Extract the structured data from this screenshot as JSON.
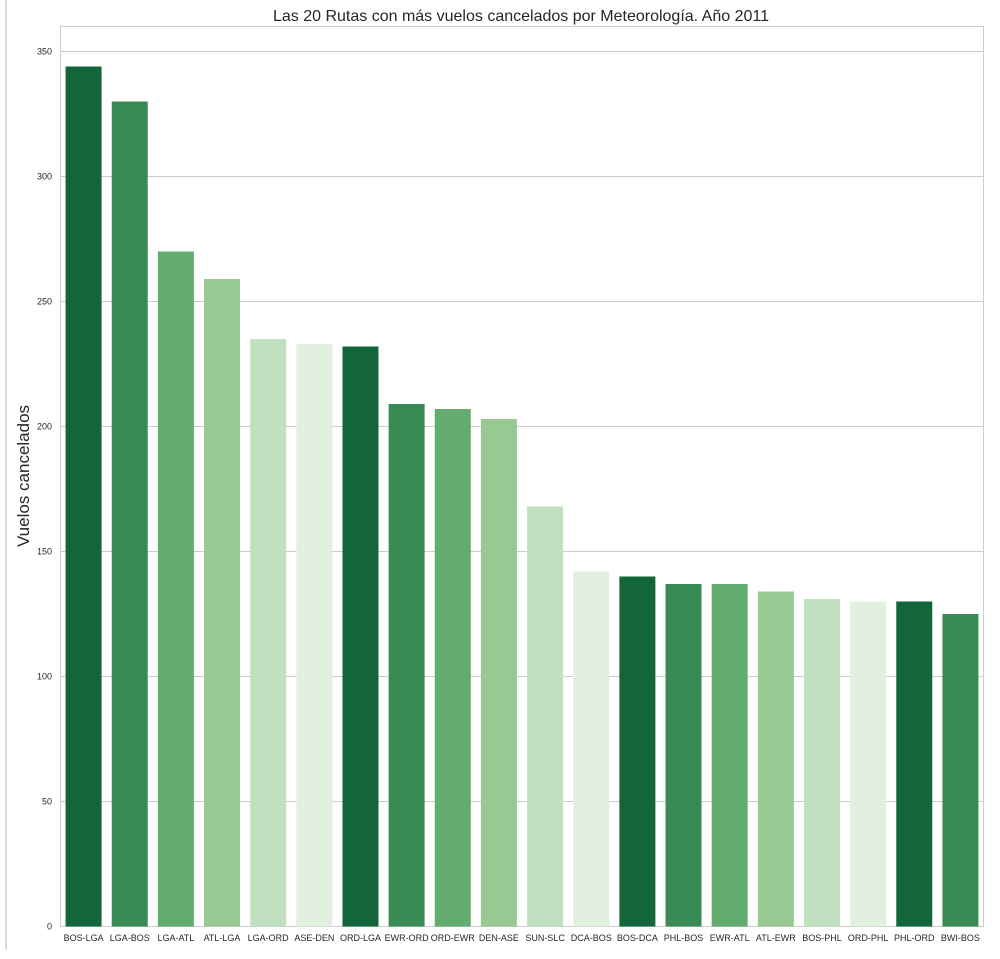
{
  "chart_data": {
    "type": "bar",
    "title": "Las 20 Rutas con más vuelos cancelados por Meteorología. Año 2011",
    "xlabel": "",
    "ylabel": "Vuelos cancelados",
    "ylim": [
      0,
      360
    ],
    "yticks": [
      0,
      50,
      100,
      150,
      200,
      250,
      300,
      350
    ],
    "grid": true,
    "categories": [
      "BOS-LGA",
      "LGA-BOS",
      "LGA-ATL",
      "ATL-LGA",
      "LGA-ORD",
      "ASE-DEN",
      "ORD-LGA",
      "EWR-ORD",
      "ORD-EWR",
      "DEN-ASE",
      "SUN-SLC",
      "DCA-BOS",
      "BOS-DCA",
      "PHL-BOS",
      "EWR-ATL",
      "ATL-EWR",
      "BOS-PHL",
      "ORD-PHL",
      "PHL-ORD",
      "BWI-BOS"
    ],
    "values": [
      344,
      330,
      270,
      259,
      235,
      233,
      232,
      209,
      207,
      203,
      168,
      142,
      140,
      137,
      137,
      134,
      131,
      130,
      130,
      125
    ],
    "palette": [
      "#12663a",
      "#3a8a56",
      "#64ab70",
      "#98c993",
      "#c1e0bf",
      "#e2f0e0"
    ]
  }
}
